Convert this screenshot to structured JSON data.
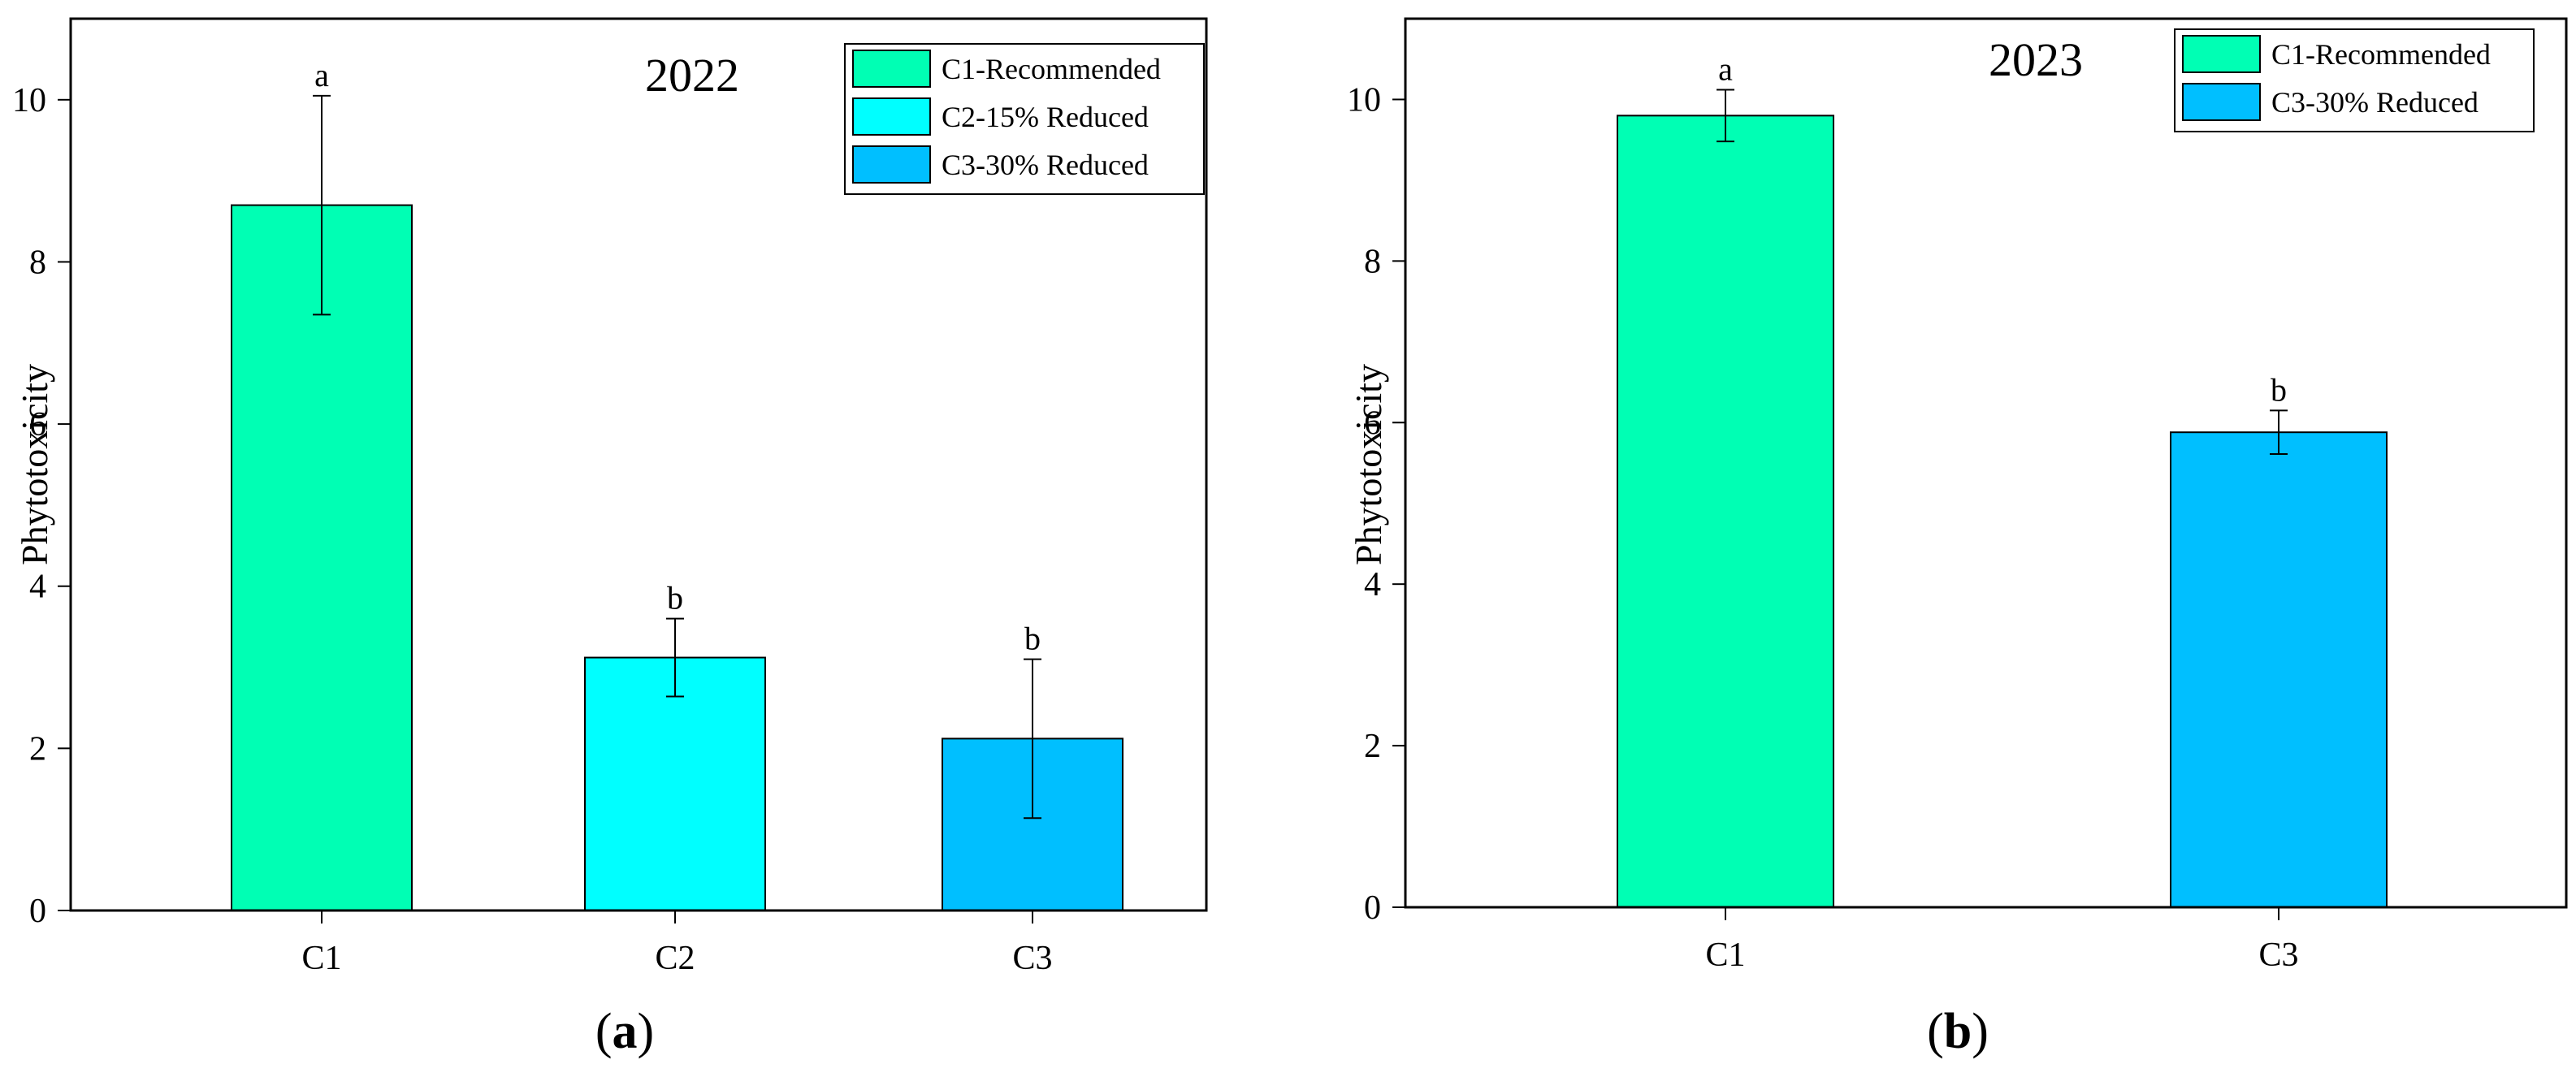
{
  "chart_data": [
    {
      "panel": "a",
      "panel_label": "a",
      "type": "bar",
      "title": "2022",
      "ylabel": "Phytotoxicity",
      "xlabel": "",
      "ylim": [
        0,
        11
      ],
      "yticks": [
        0,
        2,
        4,
        6,
        8,
        10
      ],
      "categories": [
        "C1",
        "C2",
        "C3"
      ],
      "values": [
        8.7,
        3.12,
        2.12
      ],
      "errors": [
        1.35,
        0.48,
        0.98
      ],
      "significance": [
        "a",
        "b",
        "b"
      ],
      "colors": [
        "#00ffb4",
        "#00ffff",
        "#00bfff"
      ],
      "legend": [
        {
          "label": "C1-Recommended",
          "color": "#00ffb4"
        },
        {
          "label": "C2-15% Reduced",
          "color": "#00ffff"
        },
        {
          "label": "C3-30% Reduced",
          "color": "#00bfff"
        }
      ],
      "legend_position": "top-right",
      "grid": false
    },
    {
      "panel": "b",
      "panel_label": "b",
      "type": "bar",
      "title": "2023",
      "ylabel": "Phytotoxicity",
      "xlabel": "",
      "ylim": [
        0,
        11
      ],
      "yticks": [
        0,
        2,
        4,
        6,
        8,
        10
      ],
      "categories": [
        "C1",
        "C3"
      ],
      "values": [
        9.8,
        5.88
      ],
      "errors": [
        0.32,
        0.27
      ],
      "significance": [
        "a",
        "b"
      ],
      "colors": [
        "#00ffb4",
        "#00bfff"
      ],
      "legend": [
        {
          "label": "C1-Recommended",
          "color": "#00ffb4"
        },
        {
          "label": "C3-30% Reduced",
          "color": "#00bfff"
        }
      ],
      "legend_position": "top-right",
      "grid": false
    }
  ]
}
